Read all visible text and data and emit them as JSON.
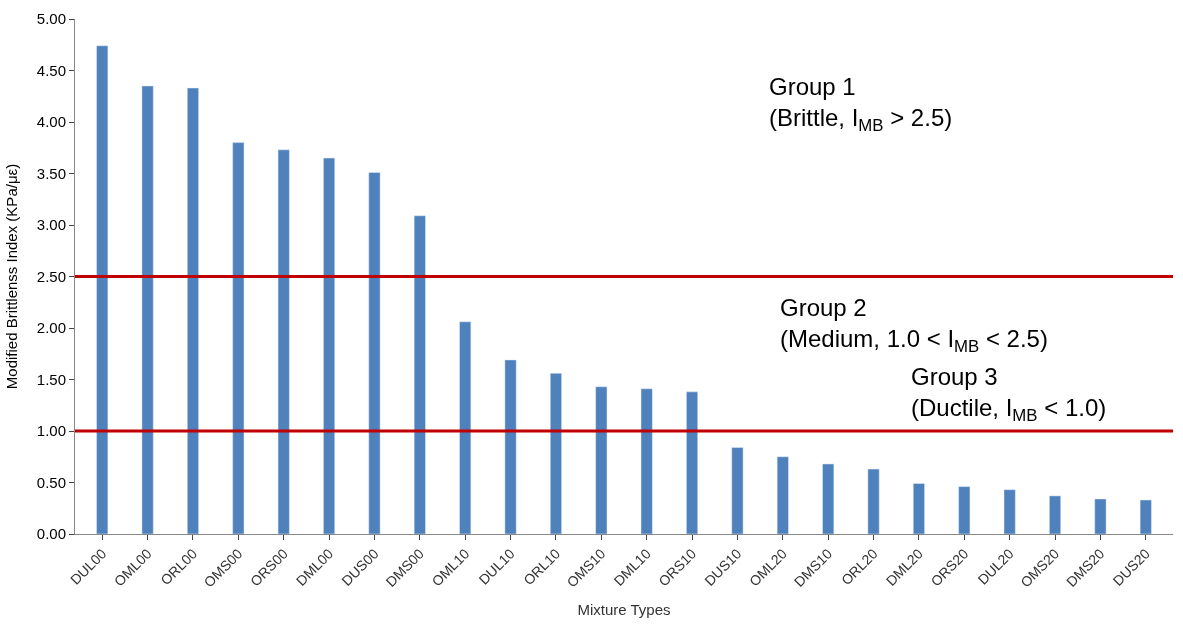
{
  "chart_data": {
    "type": "bar",
    "xlabel": "Mixture Types",
    "ylabel": "Modified Brittlenss Index (KPa/με)",
    "categories": [
      "DUL00",
      "OML00",
      "ORL00",
      "OMS00",
      "ORS00",
      "DML00",
      "DUS00",
      "DMS00",
      "OML10",
      "DUL10",
      "ORL10",
      "OMS10",
      "DML10",
      "ORS10",
      "DUS10",
      "OML20",
      "DMS10",
      "ORL20",
      "DML20",
      "ORS20",
      "DUL20",
      "OMS20",
      "DMS20",
      "DUS20"
    ],
    "values": [
      4.74,
      4.35,
      4.33,
      3.8,
      3.73,
      3.65,
      3.51,
      3.09,
      2.06,
      1.69,
      1.56,
      1.43,
      1.41,
      1.38,
      0.84,
      0.75,
      0.68,
      0.63,
      0.49,
      0.46,
      0.43,
      0.37,
      0.34,
      0.33
    ],
    "color": "#4f81bd",
    "ylim": [
      0,
      5
    ],
    "yticks": [
      {
        "value": 0,
        "label": "0.00"
      },
      {
        "value": 0.5,
        "label": "0.50"
      },
      {
        "value": 1,
        "label": "1.00"
      },
      {
        "value": 1.5,
        "label": "1.50"
      },
      {
        "value": 2,
        "label": "2.00"
      },
      {
        "value": 2.5,
        "label": "2.50"
      },
      {
        "value": 3,
        "label": "3.00"
      },
      {
        "value": 3.5,
        "label": "3.50"
      },
      {
        "value": 4,
        "label": "4.00"
      },
      {
        "value": 4.5,
        "label": "4.50"
      },
      {
        "value": 5,
        "label": "5.00"
      }
    ],
    "ref_lines": [
      {
        "axis": "y",
        "value": 2.5,
        "color": "#c00000"
      },
      {
        "axis": "y",
        "value": 1.0,
        "color": "#c00000"
      }
    ],
    "annotations": [
      "Group 1\n(Brittle, I$_{MB}$ > 2.5)",
      "Group 2\n(Medium, 1.0 < I$_{MB}$ < 2.5)",
      "Group 3\n(Ductile, I$_{MB}$ < 1.0)"
    ],
    "line_style": "solid"
  }
}
